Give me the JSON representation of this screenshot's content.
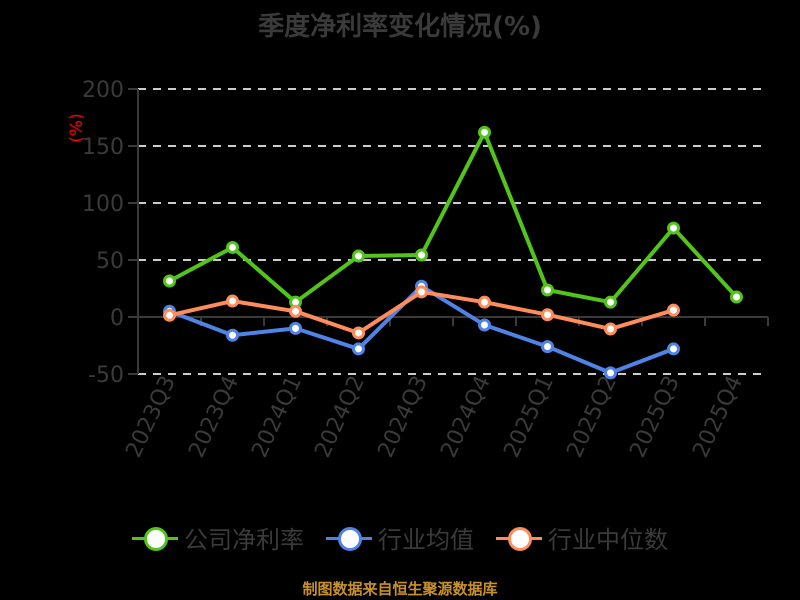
{
  "title": "季度净利率变化情况(%)",
  "yunit": "(%)",
  "source": "制图数据来自恒生聚源数据库",
  "colors": {
    "company": "#52c41a",
    "industry_avg": "#4f83e6",
    "industry_median": "#ff8c5a",
    "axis_text": "#3a3a3a",
    "grid": "#cccccc",
    "unit": "#ff0000",
    "source": "#c8922a"
  },
  "legend": [
    {
      "label": "公司净利率",
      "color": "#52c41a"
    },
    {
      "label": "行业均值",
      "color": "#4f83e6"
    },
    {
      "label": "行业中位数",
      "color": "#ff8c5a"
    }
  ],
  "chart_data": {
    "type": "line",
    "title": "季度净利率变化情况(%)",
    "xlabel": "",
    "ylabel": "(%)",
    "ylim": [
      -50,
      200
    ],
    "yticks": [
      200,
      150,
      100,
      50,
      0,
      -50
    ],
    "grid": true,
    "legend_position": "bottom",
    "categories": [
      "2023Q3",
      "2023Q4",
      "2024Q1",
      "2024Q2",
      "2024Q3",
      "2024Q4",
      "2025Q1",
      "2025Q2",
      "2025Q3",
      "2025Q4"
    ],
    "series": [
      {
        "name": "公司净利率",
        "values": [
          31.6,
          61.0,
          13.0,
          53.5,
          54.4,
          162.0,
          23.7,
          13.0,
          78.0,
          17.5
        ]
      },
      {
        "name": "行业均值",
        "values": [
          5.0,
          -16.0,
          -10.0,
          -28.0,
          27.0,
          -7.0,
          -26.0,
          -49.0,
          -28.0,
          null
        ]
      },
      {
        "name": "行业中位数",
        "values": [
          1.5,
          14.0,
          5.0,
          -14.0,
          22.0,
          13.0,
          2.0,
          -10.5,
          6.0,
          null
        ]
      }
    ],
    "source": "制图数据来自恒生聚源数据库"
  }
}
